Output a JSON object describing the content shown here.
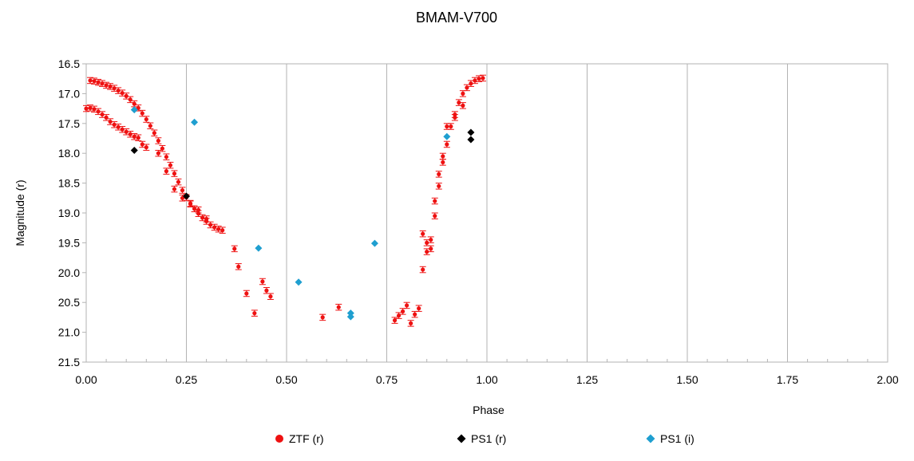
{
  "chart_data": {
    "type": "scatter",
    "title": "BMAM-V700",
    "xlabel": "Phase",
    "ylabel": "Magnitude (r)",
    "xlim": [
      0.0,
      2.0
    ],
    "ylim": [
      16.5,
      21.5
    ],
    "y_inverted": true,
    "grid": "vertical",
    "legend": "bottom",
    "x_ticks": [
      "0.00",
      "0.25",
      "0.50",
      "0.75",
      "1.00",
      "1.25",
      "1.50",
      "1.75",
      "2.00"
    ],
    "y_ticks": [
      "16.5",
      "17.0",
      "17.5",
      "18.0",
      "18.5",
      "19.0",
      "19.5",
      "20.0",
      "20.5",
      "21.0",
      "21.5"
    ],
    "series": [
      {
        "name": "ZTF (r)",
        "color": "#ee1111",
        "marker": "circle",
        "error": 0.05,
        "x": [
          0.01,
          0.02,
          0.03,
          0.04,
          0.05,
          0.06,
          0.07,
          0.08,
          0.09,
          0.1,
          0.11,
          0.12,
          0.13,
          0.14,
          0.15,
          0.16,
          0.17,
          0.18,
          0.19,
          0.2,
          0.21,
          0.22,
          0.23,
          0.24,
          0.25,
          0.26,
          0.27,
          0.28,
          0.29,
          0.3,
          0.31,
          0.32,
          0.33,
          0.34,
          0.0,
          0.01,
          0.02,
          0.03,
          0.04,
          0.05,
          0.06,
          0.07,
          0.08,
          0.09,
          0.1,
          0.11,
          0.12,
          0.13,
          0.14,
          0.15,
          0.18,
          0.2,
          0.22,
          0.24,
          0.26,
          0.28,
          0.3,
          0.37,
          0.38,
          0.4,
          0.42,
          0.44,
          0.45,
          0.46,
          0.59,
          0.63,
          0.77,
          0.78,
          0.79,
          0.8,
          0.81,
          0.82,
          0.83,
          0.84,
          0.85,
          0.86,
          0.87,
          0.88,
          0.89,
          0.9,
          0.91,
          0.92,
          0.93,
          0.94,
          0.95,
          0.96,
          0.97,
          0.98,
          0.99,
          0.84,
          0.85,
          0.86,
          0.87,
          0.88,
          0.89,
          0.9,
          0.92,
          0.94
        ],
        "y": [
          16.78,
          16.79,
          16.81,
          16.83,
          16.86,
          16.88,
          16.91,
          16.95,
          16.99,
          17.04,
          17.1,
          17.17,
          17.24,
          17.33,
          17.43,
          17.54,
          17.66,
          17.79,
          17.92,
          18.06,
          18.2,
          18.34,
          18.48,
          18.62,
          18.74,
          18.84,
          18.93,
          19.01,
          19.08,
          19.14,
          19.2,
          19.24,
          19.27,
          19.29,
          17.25,
          17.24,
          17.26,
          17.3,
          17.35,
          17.4,
          17.47,
          17.52,
          17.56,
          17.6,
          17.64,
          17.68,
          17.72,
          17.74,
          17.85,
          17.9,
          18.0,
          18.3,
          18.6,
          18.75,
          18.85,
          18.95,
          19.1,
          19.6,
          19.9,
          20.35,
          20.68,
          20.15,
          20.3,
          20.4,
          20.75,
          20.58,
          20.8,
          20.72,
          20.65,
          20.55,
          20.85,
          20.7,
          20.6,
          19.95,
          19.65,
          19.45,
          19.05,
          18.55,
          18.05,
          17.85,
          17.55,
          17.35,
          17.15,
          17.0,
          16.9,
          16.83,
          16.78,
          16.75,
          16.74,
          19.35,
          19.5,
          19.6,
          18.8,
          18.35,
          18.15,
          17.55,
          17.4,
          17.2
        ]
      },
      {
        "name": "PS1 (r)",
        "color": "#000000",
        "marker": "diamond",
        "error": 0,
        "x": [
          0.12,
          0.25,
          0.96,
          0.96
        ],
        "y": [
          17.95,
          18.72,
          17.65,
          17.77
        ]
      },
      {
        "name": "PS1 (i)",
        "color": "#1f9fd0",
        "marker": "diamond",
        "error": 0,
        "x": [
          0.12,
          0.27,
          0.43,
          0.53,
          0.66,
          0.66,
          0.72,
          0.9
        ],
        "y": [
          17.27,
          17.48,
          19.59,
          20.16,
          20.68,
          20.74,
          19.51,
          17.72
        ]
      }
    ]
  }
}
